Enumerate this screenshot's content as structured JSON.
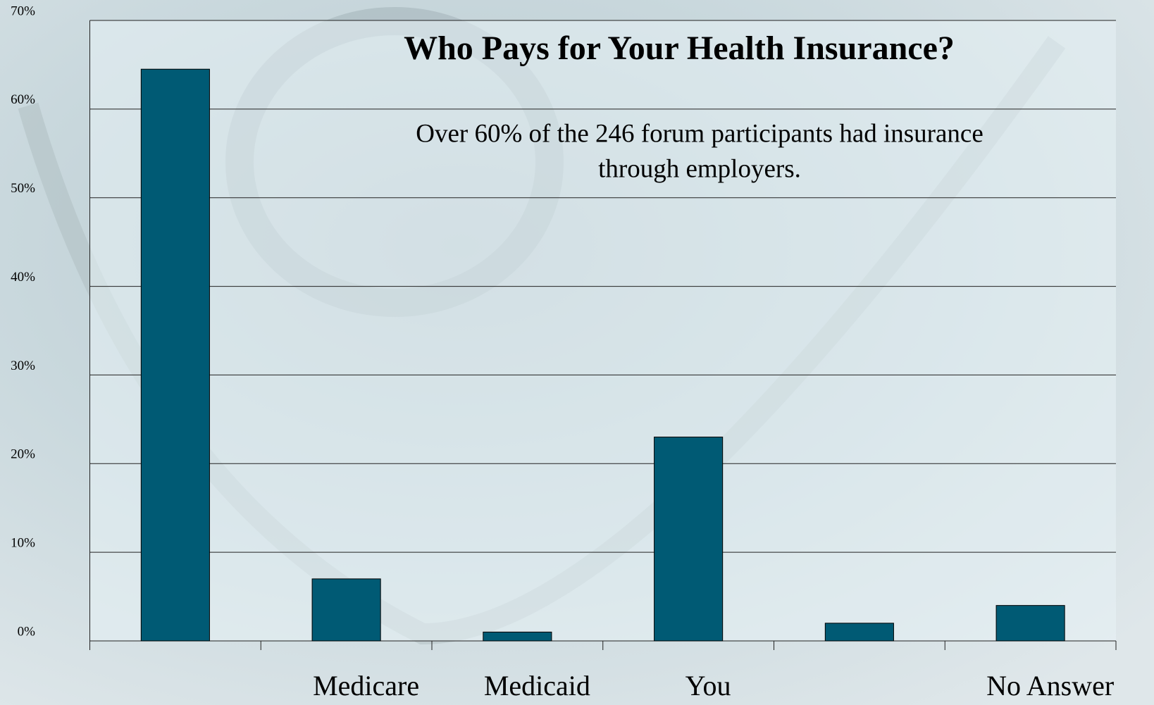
{
  "chart_data": {
    "type": "bar",
    "title": "Who Pays for Your Health Insurance?",
    "subtitle": [
      "Over 60% of the 246 forum participants had insurance",
      "through employers."
    ],
    "categories": [
      null,
      "Medicare",
      "Medicaid",
      "You",
      null,
      "No Answer"
    ],
    "values": [
      64.5,
      7,
      1,
      23,
      2,
      4
    ],
    "color": "#005a74",
    "ylim": [
      0,
      70
    ],
    "yticks": [
      {
        "value": 0,
        "label": "0%"
      },
      {
        "value": 10,
        "label": "10%"
      },
      {
        "value": 20,
        "label": "20%"
      },
      {
        "value": 30,
        "label": "30%"
      },
      {
        "value": 40,
        "label": "40%"
      },
      {
        "value": 50,
        "label": "50%"
      },
      {
        "value": 60,
        "label": "60%"
      },
      {
        "value": 70,
        "label": "70%"
      }
    ],
    "grid": true
  }
}
